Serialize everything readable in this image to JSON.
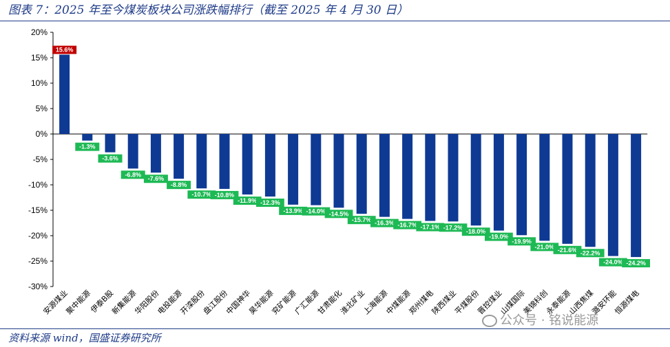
{
  "header": {
    "title": "图表 7：2025 年至今煤炭板块公司涨跌幅排行（截至 2025 年 4 月 30 日）"
  },
  "footer": {
    "source": "资料来源 wind，国盛证券研究所"
  },
  "watermark": {
    "text": "公众号 · 铭说能源",
    "icon": "wechat-icon"
  },
  "colors": {
    "bar": "#0E3A94",
    "positive_label": "#C00000",
    "negative_label": "#1DB954",
    "rule": "#1F3C88"
  },
  "chart_data": {
    "type": "bar",
    "title": "",
    "xlabel": "",
    "ylabel": "",
    "ylim": [
      -30,
      20
    ],
    "yticks": [
      20,
      15,
      10,
      5,
      0,
      -5,
      -10,
      -15,
      -20,
      -25,
      -30
    ],
    "ytick_labels": [
      "20%",
      "15%",
      "10%",
      "5%",
      "0%",
      "-5%",
      "-10%",
      "-15%",
      "-20%",
      "-25%",
      "-30%"
    ],
    "grid": false,
    "categories": [
      "安源煤业",
      "聚中能源",
      "伊泰B股",
      "新集能源",
      "华阳股份",
      "电投能源",
      "开滦股份",
      "盘江股份",
      "中国神华",
      "昊华能源",
      "兖矿能源",
      "广汇能源",
      "甘肃能化",
      "淮北矿业",
      "上海能源",
      "中煤能源",
      "郑州煤电",
      "陕西煤业",
      "平煤股份",
      "晋控煤业",
      "山煤国际",
      "美锦科创",
      "永泰能源",
      "山西焦煤",
      "潞安环能",
      "恒源煤电"
    ],
    "values": [
      15.6,
      -1.3,
      -3.6,
      -6.8,
      -7.6,
      -8.8,
      -10.7,
      -10.8,
      -11.9,
      -12.3,
      -13.9,
      -14.0,
      -14.5,
      -15.7,
      -16.3,
      -16.7,
      -17.1,
      -17.2,
      -18.0,
      -19.0,
      -19.9,
      -21.0,
      -21.6,
      -22.2,
      -24.0,
      -24.2
    ],
    "labels": [
      "15.6%",
      "-1.3%",
      "-3.6%",
      "-6.8%",
      "-7.6%",
      "-8.8%",
      "-10.7%",
      "-10.8%",
      "-11.9%",
      "-12.3%",
      "-13.9%",
      "-14.0%",
      "-14.5%",
      "-15.7%",
      "-16.3%",
      "-16.7%",
      "-17.1%",
      "-17.2%",
      "-18.0%",
      "-19.0%",
      "-19.9%",
      "-21.0%",
      "-21.6%",
      "-22.2%",
      "-24.0%",
      "-24.2%"
    ]
  }
}
